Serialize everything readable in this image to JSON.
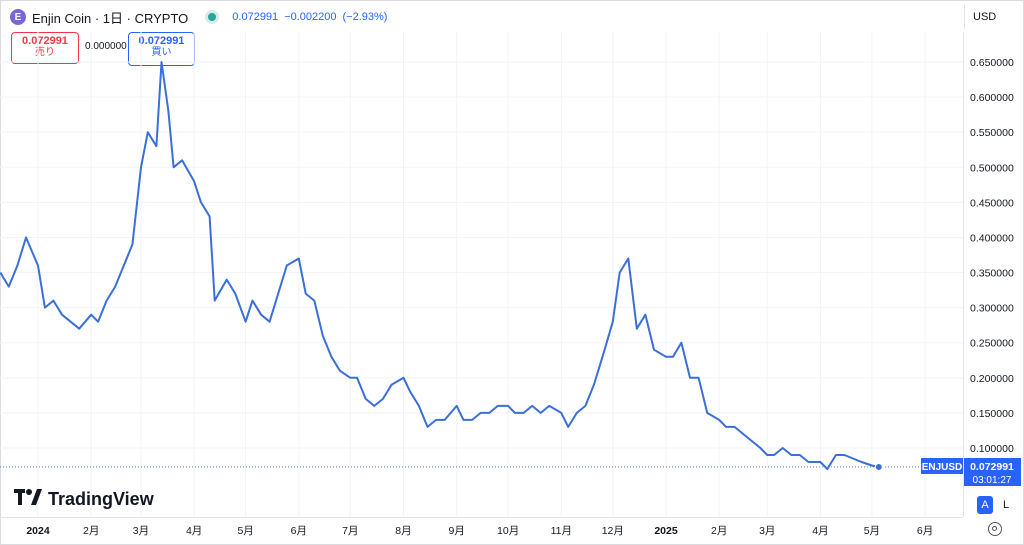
{
  "header": {
    "coin_icon": "enjin-coin-icon",
    "title": "Enjin Coin · 1日 · CRYPTO",
    "last": "0.072991",
    "change": "−0.002200",
    "change_pct": "(−2.93%)",
    "live_color": "#26a69a"
  },
  "order": {
    "sell_price": "0.072991",
    "sell_label": "売り",
    "spread": "0.000000",
    "buy_price": "0.072991",
    "buy_label": "買い"
  },
  "currency": "USD",
  "price_tag": {
    "symbol": "ENJUSD",
    "price": "0.072991",
    "countdown": "03:01:27"
  },
  "scale_buttons": {
    "auto": "A",
    "log": "L"
  },
  "brand": "TradingView",
  "colors": {
    "line": "#3a6fd8",
    "sell": "#f23645",
    "buy": "#2962ff",
    "tag": "#2962ff"
  },
  "chart_data": {
    "type": "line",
    "x_labels": [
      "2024",
      "2月",
      "3月",
      "4月",
      "5月",
      "6月",
      "7月",
      "8月",
      "9月",
      "10月",
      "11月",
      "12月",
      "2025",
      "2月",
      "3月",
      "4月",
      "5月",
      "6月"
    ],
    "y_ticks": [
      "0.650000",
      "0.600000",
      "0.550000",
      "0.500000",
      "0.450000",
      "0.400000",
      "0.350000",
      "0.300000",
      "0.250000",
      "0.200000",
      "0.150000",
      "0.100000"
    ],
    "ylim": [
      0.05,
      0.68
    ],
    "grid": true,
    "series": [
      {
        "name": "ENJUSD",
        "x": [
          "2023-12-10",
          "2023-12-15",
          "2023-12-20",
          "2023-12-25",
          "2024-01-01",
          "2024-01-05",
          "2024-01-10",
          "2024-01-15",
          "2024-01-20",
          "2024-01-25",
          "2024-02-01",
          "2024-02-05",
          "2024-02-10",
          "2024-02-15",
          "2024-02-20",
          "2024-02-25",
          "2024-03-01",
          "2024-03-05",
          "2024-03-10",
          "2024-03-13",
          "2024-03-17",
          "2024-03-20",
          "2024-03-25",
          "2024-04-01",
          "2024-04-05",
          "2024-04-10",
          "2024-04-13",
          "2024-04-20",
          "2024-04-25",
          "2024-05-01",
          "2024-05-05",
          "2024-05-10",
          "2024-05-15",
          "2024-05-20",
          "2024-05-25",
          "2024-06-01",
          "2024-06-05",
          "2024-06-10",
          "2024-06-15",
          "2024-06-20",
          "2024-06-25",
          "2024-07-01",
          "2024-07-05",
          "2024-07-10",
          "2024-07-15",
          "2024-07-20",
          "2024-07-25",
          "2024-08-01",
          "2024-08-05",
          "2024-08-10",
          "2024-08-15",
          "2024-08-20",
          "2024-08-25",
          "2024-09-01",
          "2024-09-05",
          "2024-09-10",
          "2024-09-15",
          "2024-09-20",
          "2024-09-25",
          "2024-10-01",
          "2024-10-05",
          "2024-10-10",
          "2024-10-15",
          "2024-10-20",
          "2024-10-25",
          "2024-11-01",
          "2024-11-05",
          "2024-11-10",
          "2024-11-15",
          "2024-11-20",
          "2024-11-25",
          "2024-12-01",
          "2024-12-05",
          "2024-12-10",
          "2024-12-15",
          "2024-12-20",
          "2024-12-25",
          "2025-01-01",
          "2025-01-05",
          "2025-01-10",
          "2025-01-15",
          "2025-01-20",
          "2025-01-25",
          "2025-02-01",
          "2025-02-05",
          "2025-02-10",
          "2025-02-15",
          "2025-02-20",
          "2025-02-25",
          "2025-03-01",
          "2025-03-05",
          "2025-03-10",
          "2025-03-15",
          "2025-03-20",
          "2025-03-25",
          "2025-04-01",
          "2025-04-05",
          "2025-04-10",
          "2025-04-15",
          "2025-04-20",
          "2025-04-25",
          "2025-05-01",
          "2025-05-05"
        ],
        "y": [
          0.35,
          0.33,
          0.36,
          0.4,
          0.36,
          0.3,
          0.31,
          0.29,
          0.28,
          0.27,
          0.29,
          0.28,
          0.31,
          0.33,
          0.36,
          0.39,
          0.5,
          0.55,
          0.53,
          0.65,
          0.58,
          0.5,
          0.51,
          0.48,
          0.45,
          0.43,
          0.31,
          0.34,
          0.32,
          0.28,
          0.31,
          0.29,
          0.28,
          0.32,
          0.36,
          0.37,
          0.32,
          0.31,
          0.26,
          0.23,
          0.21,
          0.2,
          0.2,
          0.17,
          0.16,
          0.17,
          0.19,
          0.2,
          0.18,
          0.16,
          0.13,
          0.14,
          0.14,
          0.16,
          0.14,
          0.14,
          0.15,
          0.15,
          0.16,
          0.16,
          0.15,
          0.15,
          0.16,
          0.15,
          0.16,
          0.15,
          0.13,
          0.15,
          0.16,
          0.19,
          0.23,
          0.28,
          0.35,
          0.37,
          0.27,
          0.29,
          0.24,
          0.23,
          0.23,
          0.25,
          0.2,
          0.2,
          0.15,
          0.14,
          0.13,
          0.13,
          0.12,
          0.11,
          0.1,
          0.09,
          0.09,
          0.1,
          0.09,
          0.09,
          0.08,
          0.08,
          0.07,
          0.09,
          0.09,
          0.085,
          0.08,
          0.075,
          0.073
        ]
      }
    ]
  }
}
